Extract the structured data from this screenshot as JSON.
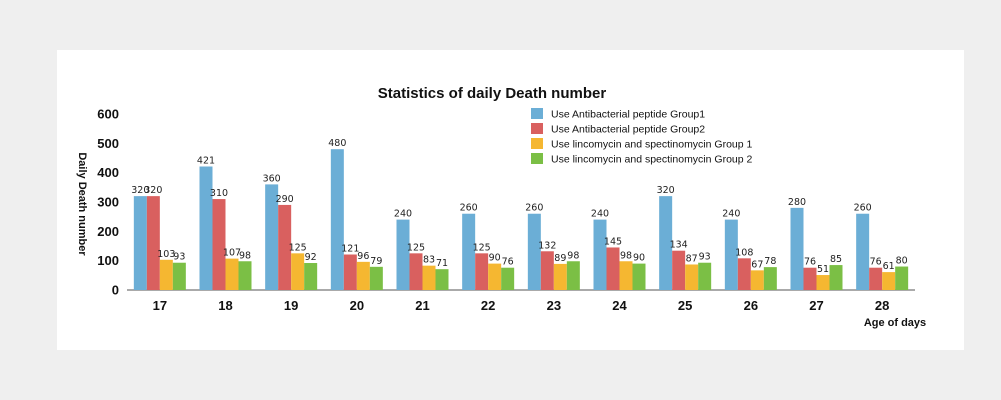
{
  "chart_data": {
    "type": "bar",
    "title": "Statistics of daily Death number",
    "xlabel": "Age of days",
    "ylabel": "Daily Death number",
    "ylim": [
      0,
      600
    ],
    "yticks": [
      0,
      100,
      200,
      300,
      400,
      500,
      600
    ],
    "grid": false,
    "legend_position": "top-right",
    "categories": [
      "17",
      "18",
      "19",
      "20",
      "21",
      "22",
      "23",
      "24",
      "25",
      "26",
      "27",
      "28"
    ],
    "series": [
      {
        "name": "Use Antibacterial peptide Group1",
        "color": "#6baed6",
        "values": [
          320,
          421,
          360,
          480,
          240,
          260,
          260,
          240,
          320,
          240,
          280,
          260
        ]
      },
      {
        "name": "Use Antibacterial peptide Group2",
        "color": "#d9605f",
        "values": [
          320,
          310,
          290,
          121,
          125,
          125,
          132,
          145,
          134,
          108,
          76,
          76
        ]
      },
      {
        "name": "Use lincomycin and spectinomycin Group 1",
        "color": "#f5b731",
        "values": [
          103,
          107,
          125,
          96,
          83,
          90,
          89,
          98,
          87,
          67,
          51,
          61
        ]
      },
      {
        "name": "Use lincomycin and spectinomycin Group 2",
        "color": "#7bbf45",
        "values": [
          93,
          98,
          92,
          79,
          71,
          76,
          98,
          90,
          93,
          78,
          85,
          80
        ]
      }
    ]
  }
}
